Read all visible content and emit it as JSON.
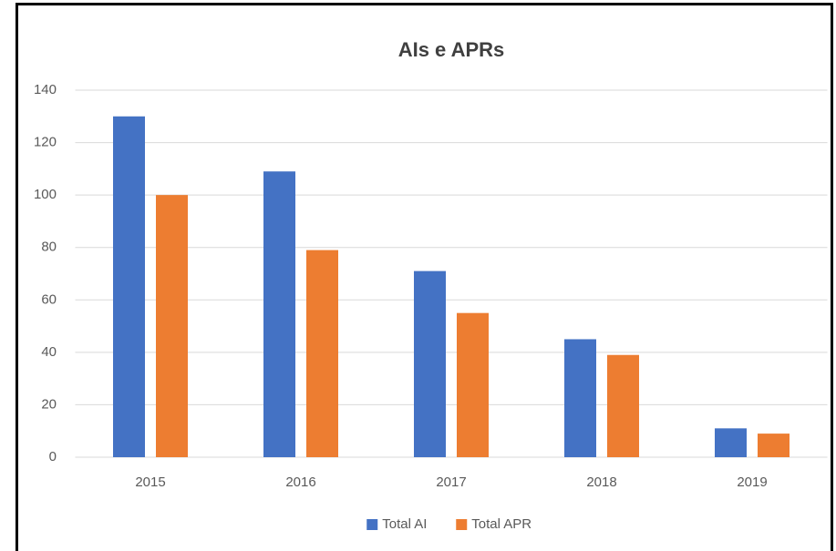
{
  "chart_data": {
    "type": "bar",
    "title": "AIs e APRs",
    "categories": [
      "2015",
      "2016",
      "2017",
      "2018",
      "2019"
    ],
    "series": [
      {
        "name": "Total AI",
        "color": "#4472c4",
        "values": [
          130,
          109,
          71,
          45,
          11
        ]
      },
      {
        "name": "Total APR",
        "color": "#ed7d31",
        "values": [
          100,
          79,
          55,
          39,
          9
        ]
      }
    ],
    "ylim": [
      0,
      140
    ],
    "yticks": [
      0,
      20,
      40,
      60,
      80,
      100,
      120,
      140
    ],
    "grid": true,
    "legend": "bottom"
  }
}
